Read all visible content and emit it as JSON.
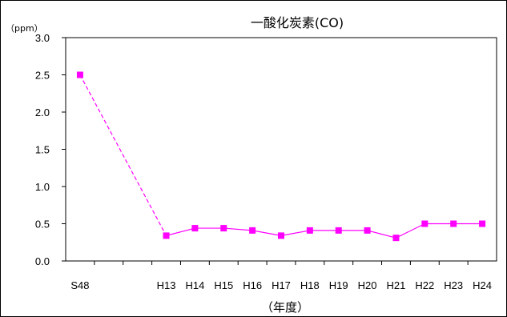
{
  "chart_data": {
    "type": "line",
    "title": "一酸化炭素(CO)",
    "ylabel": "（ppm）",
    "xlabel": "（年度）",
    "categories": [
      "S48",
      "",
      "",
      "H13",
      "H14",
      "H15",
      "H16",
      "H17",
      "H18",
      "H19",
      "H20",
      "H21",
      "H22",
      "H23",
      "H24"
    ],
    "y_ticks": [
      "0.0",
      "0.5",
      "1.0",
      "1.5",
      "2.0",
      "2.5",
      "3.0"
    ],
    "ylim": [
      0,
      3
    ],
    "grid": false,
    "legend": "none",
    "series": [
      {
        "values": [
          2.5,
          null,
          null,
          0.34,
          0.44,
          0.44,
          0.41,
          0.34,
          0.41,
          0.41,
          0.41,
          0.31,
          0.5,
          0.5,
          0.5
        ],
        "color": "#ff00ff",
        "marker": "square",
        "segment_style": [
          "dashed",
          null,
          null,
          "solid",
          "solid",
          "solid",
          "solid",
          "solid",
          "solid",
          "solid",
          "solid",
          "solid",
          "solid",
          "solid"
        ]
      }
    ]
  }
}
